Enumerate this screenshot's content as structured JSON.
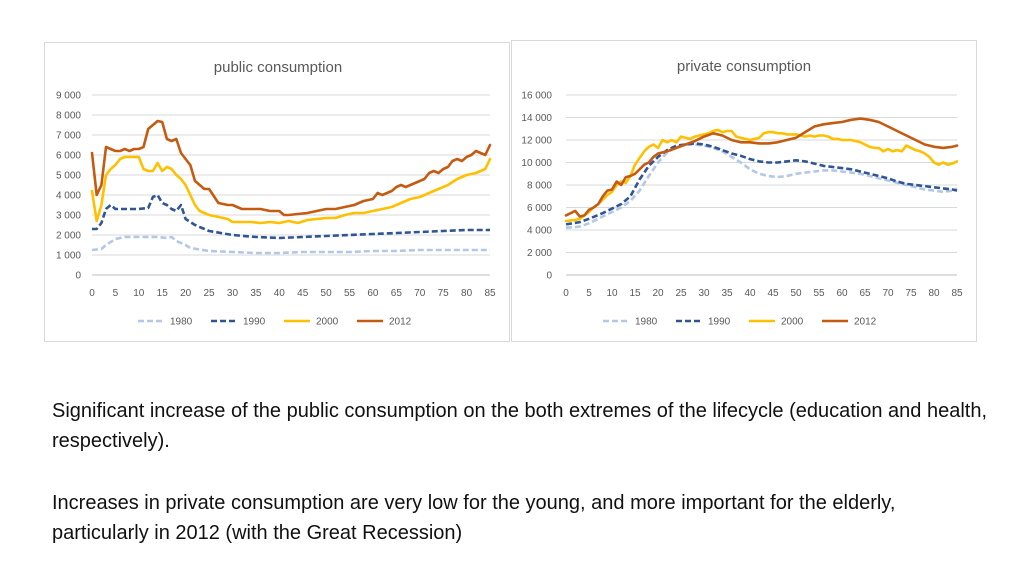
{
  "chart_data": [
    {
      "type": "line",
      "title": "public consumption",
      "xlabel": "",
      "ylabel": "",
      "x_ticks": [
        0,
        5,
        10,
        15,
        20,
        25,
        30,
        35,
        40,
        45,
        50,
        55,
        60,
        65,
        70,
        75,
        80,
        85
      ],
      "y_ticks": [
        0,
        1000,
        2000,
        3000,
        4000,
        5000,
        6000,
        7000,
        8000,
        9000
      ],
      "y_tick_labels": [
        "0",
        "1 000",
        "2 000",
        "3 000",
        "4 000",
        "5 000",
        "6 000",
        "7 000",
        "8 000",
        "9 000"
      ],
      "xlim": [
        0,
        85
      ],
      "ylim": [
        0,
        9000
      ],
      "grid": "horizontal",
      "legend_position": "bottom",
      "series": [
        {
          "name": "1980",
          "color": "#b4c7e7",
          "dash": "dashed",
          "x": [
            0,
            2,
            3,
            5,
            7,
            10,
            12,
            14,
            16,
            17,
            18,
            20,
            21,
            25,
            30,
            35,
            40,
            45,
            50,
            55,
            60,
            65,
            70,
            75,
            80,
            85
          ],
          "y": [
            1250,
            1300,
            1500,
            1800,
            1900,
            1900,
            1900,
            1900,
            1850,
            1900,
            1700,
            1500,
            1350,
            1200,
            1150,
            1100,
            1100,
            1150,
            1150,
            1150,
            1200,
            1200,
            1250,
            1250,
            1250,
            1250
          ]
        },
        {
          "name": "1990",
          "color": "#2f5597",
          "dash": "dashed",
          "x": [
            0,
            1,
            2,
            3,
            4,
            5,
            6,
            8,
            10,
            12,
            13,
            14,
            15,
            16,
            17,
            18,
            19,
            20,
            22,
            25,
            30,
            35,
            40,
            45,
            50,
            55,
            60,
            65,
            70,
            75,
            80,
            85
          ],
          "y": [
            2300,
            2300,
            2600,
            3300,
            3500,
            3300,
            3300,
            3300,
            3300,
            3350,
            3900,
            4000,
            3600,
            3500,
            3300,
            3200,
            3500,
            2800,
            2500,
            2200,
            2000,
            1900,
            1850,
            1900,
            1950,
            2000,
            2050,
            2100,
            2150,
            2200,
            2250,
            2250
          ]
        },
        {
          "name": "2000",
          "color": "#ffc000",
          "dash": "solid",
          "x": [
            0,
            1,
            2,
            3,
            4,
            5,
            6,
            7,
            8,
            10,
            11,
            12,
            13,
            14,
            15,
            16,
            17,
            18,
            19,
            20,
            21,
            22,
            23,
            24,
            25,
            27,
            29,
            30,
            32,
            34,
            36,
            38,
            40,
            42,
            44,
            46,
            48,
            50,
            52,
            54,
            56,
            58,
            60,
            62,
            64,
            66,
            68,
            70,
            72,
            74,
            76,
            78,
            80,
            82,
            84,
            85
          ],
          "y": [
            4200,
            2700,
            3500,
            5000,
            5300,
            5500,
            5800,
            5900,
            5900,
            5900,
            5300,
            5200,
            5200,
            5600,
            5200,
            5400,
            5300,
            5000,
            4800,
            4500,
            4000,
            3500,
            3200,
            3100,
            3000,
            2900,
            2800,
            2650,
            2650,
            2650,
            2600,
            2650,
            2600,
            2700,
            2600,
            2750,
            2800,
            2850,
            2850,
            3000,
            3100,
            3100,
            3200,
            3300,
            3400,
            3600,
            3800,
            3900,
            4100,
            4300,
            4500,
            4800,
            5000,
            5100,
            5300,
            5800
          ]
        },
        {
          "name": "2012",
          "color": "#c55a11",
          "dash": "solid",
          "x": [
            0,
            1,
            2,
            3,
            4,
            5,
            6,
            7,
            8,
            9,
            10,
            11,
            12,
            13,
            14,
            15,
            16,
            17,
            18,
            19,
            20,
            21,
            22,
            23,
            24,
            25,
            27,
            29,
            30,
            32,
            34,
            36,
            38,
            40,
            41,
            42,
            44,
            46,
            48,
            50,
            52,
            54,
            56,
            58,
            60,
            61,
            62,
            63,
            64,
            65,
            66,
            67,
            68,
            69,
            70,
            71,
            72,
            73,
            74,
            75,
            76,
            77,
            78,
            79,
            80,
            81,
            82,
            83,
            84,
            85
          ],
          "y": [
            6100,
            4000,
            4500,
            6400,
            6300,
            6200,
            6200,
            6300,
            6200,
            6300,
            6300,
            6400,
            7300,
            7500,
            7700,
            7650,
            6800,
            6700,
            6800,
            6100,
            5800,
            5500,
            4700,
            4500,
            4300,
            4300,
            3600,
            3500,
            3500,
            3300,
            3300,
            3300,
            3200,
            3200,
            3000,
            3000,
            3050,
            3100,
            3200,
            3300,
            3300,
            3400,
            3500,
            3700,
            3800,
            4100,
            4000,
            4100,
            4200,
            4400,
            4500,
            4400,
            4500,
            4600,
            4700,
            4800,
            5100,
            5200,
            5100,
            5300,
            5400,
            5700,
            5800,
            5700,
            5900,
            6000,
            6200,
            6100,
            6000,
            6500
          ]
        }
      ]
    },
    {
      "type": "line",
      "title": "private consumption",
      "xlabel": "",
      "ylabel": "",
      "x_ticks": [
        0,
        5,
        10,
        15,
        20,
        25,
        30,
        35,
        40,
        45,
        50,
        55,
        60,
        65,
        70,
        75,
        80,
        85
      ],
      "y_ticks": [
        0,
        2000,
        4000,
        6000,
        8000,
        10000,
        12000,
        14000,
        16000
      ],
      "y_tick_labels": [
        "0",
        "2 000",
        "4 000",
        "6 000",
        "8 000",
        "10 000",
        "12 000",
        "14 000",
        "16 000"
      ],
      "xlim": [
        0,
        85
      ],
      "ylim": [
        0,
        16000
      ],
      "grid": "horizontal",
      "legend_position": "bottom",
      "series": [
        {
          "name": "1980",
          "color": "#b4c7e7",
          "dash": "dashed",
          "x": [
            0,
            3,
            5,
            8,
            10,
            12,
            14,
            16,
            18,
            20,
            22,
            24,
            26,
            28,
            30,
            32,
            34,
            36,
            38,
            40,
            42,
            44,
            46,
            48,
            50,
            52,
            54,
            56,
            58,
            60,
            62,
            64,
            66,
            68,
            70,
            72,
            74,
            76,
            78,
            80,
            82,
            84,
            85
          ],
          "y": [
            4200,
            4300,
            4600,
            5200,
            5600,
            6000,
            6600,
            7500,
            8800,
            10000,
            10900,
            11400,
            11600,
            11600,
            11500,
            11300,
            11000,
            10500,
            10000,
            9400,
            9000,
            8800,
            8700,
            8800,
            9000,
            9100,
            9200,
            9300,
            9300,
            9200,
            9100,
            9000,
            8800,
            8600,
            8400,
            8200,
            8000,
            7800,
            7600,
            7500,
            7400,
            7500,
            7700
          ]
        },
        {
          "name": "1990",
          "color": "#2f5597",
          "dash": "dashed",
          "x": [
            0,
            3,
            5,
            8,
            10,
            12,
            14,
            16,
            18,
            20,
            22,
            24,
            26,
            28,
            30,
            32,
            34,
            36,
            38,
            40,
            42,
            44,
            46,
            48,
            50,
            52,
            54,
            56,
            58,
            60,
            62,
            64,
            66,
            68,
            70,
            72,
            74,
            76,
            78,
            80,
            82,
            84,
            85
          ],
          "y": [
            4500,
            4700,
            5000,
            5500,
            5900,
            6300,
            7000,
            8500,
            9700,
            10500,
            11100,
            11500,
            11600,
            11700,
            11600,
            11400,
            11100,
            10800,
            10600,
            10300,
            10100,
            10000,
            10000,
            10100,
            10200,
            10100,
            9900,
            9700,
            9600,
            9500,
            9400,
            9200,
            9000,
            8800,
            8600,
            8300,
            8100,
            8000,
            7900,
            7800,
            7700,
            7600,
            7500
          ]
        },
        {
          "name": "2000",
          "color": "#ffc000",
          "dash": "solid",
          "x": [
            0,
            2,
            3,
            4,
            5,
            6,
            7,
            8,
            9,
            10,
            11,
            12,
            13,
            14,
            15,
            16,
            17,
            18,
            19,
            20,
            21,
            22,
            23,
            24,
            25,
            26,
            27,
            28,
            29,
            30,
            31,
            32,
            33,
            34,
            35,
            36,
            37,
            38,
            39,
            40,
            41,
            42,
            43,
            44,
            45,
            46,
            47,
            48,
            49,
            50,
            51,
            52,
            53,
            54,
            55,
            56,
            57,
            58,
            59,
            60,
            61,
            62,
            63,
            64,
            65,
            66,
            67,
            68,
            69,
            70,
            71,
            72,
            73,
            74,
            75,
            76,
            77,
            78,
            79,
            80,
            81,
            82,
            83,
            84,
            85
          ],
          "y": [
            4800,
            4900,
            5000,
            5300,
            5600,
            6000,
            6300,
            6700,
            7100,
            7400,
            8000,
            8300,
            8200,
            8800,
            9800,
            10400,
            11000,
            11400,
            11600,
            11300,
            12000,
            11800,
            12000,
            11800,
            12300,
            12200,
            12100,
            12300,
            12400,
            12500,
            12600,
            12800,
            12900,
            12700,
            12800,
            12800,
            12300,
            12200,
            12100,
            12000,
            12100,
            12200,
            12600,
            12700,
            12700,
            12600,
            12600,
            12500,
            12500,
            12500,
            12400,
            12300,
            12400,
            12300,
            12400,
            12400,
            12300,
            12100,
            12100,
            12000,
            12000,
            12000,
            11900,
            11800,
            11600,
            11400,
            11300,
            11300,
            11000,
            11200,
            11000,
            11100,
            11000,
            11500,
            11300,
            11100,
            11000,
            10800,
            10500,
            10000,
            9800,
            10000,
            9800,
            9900,
            10100
          ]
        },
        {
          "name": "2012",
          "color": "#c55a11",
          "dash": "solid",
          "x": [
            0,
            2,
            3,
            4,
            5,
            6,
            7,
            8,
            9,
            10,
            11,
            12,
            13,
            14,
            15,
            16,
            17,
            18,
            19,
            20,
            22,
            24,
            26,
            28,
            30,
            32,
            34,
            36,
            38,
            40,
            42,
            44,
            46,
            48,
            50,
            52,
            54,
            56,
            58,
            60,
            62,
            64,
            66,
            68,
            70,
            72,
            74,
            76,
            78,
            80,
            82,
            84,
            85
          ],
          "y": [
            5300,
            5700,
            5200,
            5300,
            5800,
            6000,
            6300,
            7000,
            7500,
            7600,
            8300,
            8000,
            8700,
            8800,
            9000,
            9400,
            9800,
            10000,
            10500,
            10800,
            11000,
            11300,
            11600,
            11900,
            12300,
            12600,
            12400,
            12000,
            11800,
            11800,
            11700,
            11700,
            11800,
            12000,
            12200,
            12700,
            13200,
            13400,
            13500,
            13600,
            13800,
            13900,
            13800,
            13600,
            13200,
            12800,
            12400,
            12000,
            11600,
            11400,
            11300,
            11400,
            11500
          ]
        }
      ]
    }
  ],
  "text": {
    "para1": "Significant increase of the public consumption on the both extremes of the lifecycle (education and health, respectively).",
    "para2": "Increases in private consumption are very low for the young, and more important for the elderly, particularly in 2012 (with the Great Recession)"
  }
}
